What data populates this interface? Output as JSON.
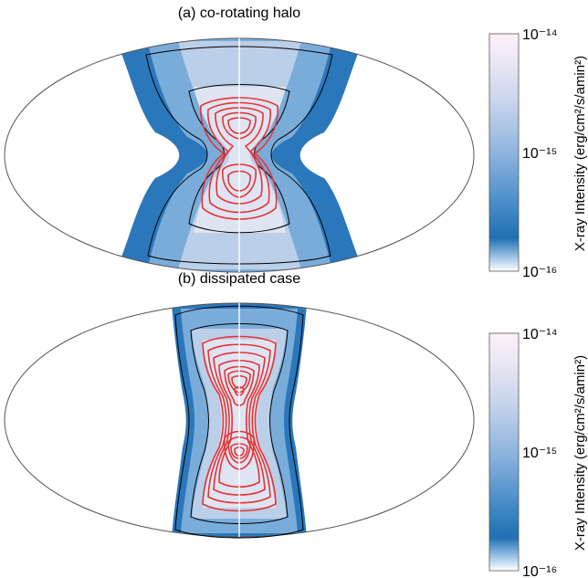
{
  "chart_data": [
    {
      "type": "heatmap",
      "title": "(a) co-rotating halo",
      "projection": "Mollweide all-sky map",
      "colorbar": {
        "label": "X-ray Intensity (erg/cm²/s/amin²)",
        "scale": "log",
        "range": [
          1e-16,
          1e-14
        ],
        "ticks": [
          "10⁻¹⁶",
          "10⁻¹⁵",
          "10⁻¹⁴"
        ],
        "tick_values": [
          1e-16,
          1e-15,
          1e-14
        ],
        "colors": [
          "#ffffff",
          "#1f6fb2",
          "#6fa7d6",
          "#b8cbe6",
          "#dfe3f1",
          "#fdf1f8"
        ]
      },
      "contours": {
        "black_levels": 2,
        "red_levels": 5,
        "black_color": "#000000",
        "red_color": "#e53434"
      },
      "morphology": "X-shaped emission, pinched near the Galactic plane"
    },
    {
      "type": "heatmap",
      "title": "(b) dissipated case",
      "projection": "Mollweide all-sky map",
      "colorbar": {
        "label": "X-ray Intensity (erg/cm²/s/amin²)",
        "scale": "log",
        "range": [
          1e-16,
          1e-14
        ],
        "ticks": [
          "10⁻¹⁶",
          "10⁻¹⁵",
          "10⁻¹⁴"
        ],
        "tick_values": [
          1e-16,
          1e-15,
          1e-14
        ],
        "colors": [
          "#ffffff",
          "#1f6fb2",
          "#6fa7d6",
          "#b8cbe6",
          "#dfe3f1",
          "#fdf1f8"
        ]
      },
      "contours": {
        "black_levels": 2,
        "red_levels": 8,
        "black_color": "#000000",
        "red_color": "#e53434"
      },
      "morphology": "Bipolar emission confined near the central meridian"
    }
  ]
}
